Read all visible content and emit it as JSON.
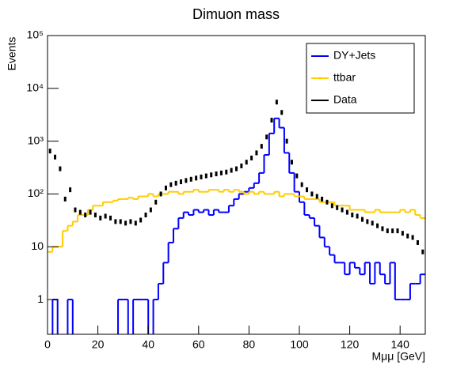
{
  "chart_data": {
    "type": "histogram",
    "title": "Dimuon mass",
    "x_label": "Mμμ [GeV]",
    "y_label": "Events",
    "log_y": true,
    "legend": "top right",
    "xlim": [
      0,
      150
    ],
    "xticks": [
      0,
      20,
      40,
      60,
      80,
      100,
      120,
      140
    ],
    "ylim": [
      0.22,
      100000
    ],
    "yticks": [
      1,
      10,
      {
        "value": 100,
        "label": "10²"
      },
      {
        "value": 1000,
        "label": "10³"
      },
      {
        "value": 10000,
        "label": "10⁴"
      },
      {
        "value": 100000,
        "label": "10⁵"
      }
    ],
    "bins": [
      0,
      2,
      4,
      6,
      8,
      10,
      12,
      14,
      16,
      18,
      20,
      22,
      24,
      26,
      28,
      30,
      32,
      34,
      36,
      38,
      40,
      42,
      44,
      46,
      48,
      50,
      52,
      54,
      56,
      58,
      60,
      62,
      64,
      66,
      68,
      70,
      72,
      74,
      76,
      78,
      80,
      82,
      84,
      86,
      88,
      90,
      92,
      94,
      96,
      98,
      100,
      102,
      104,
      106,
      108,
      110,
      112,
      114,
      116,
      118,
      120,
      122,
      124,
      126,
      128,
      130,
      132,
      134,
      136,
      138,
      140,
      142,
      144,
      146,
      148,
      150
    ],
    "series": [
      {
        "name": "DY+Jets",
        "color": "#0000ff",
        "style": "step",
        "values": [
          0,
          1,
          0,
          0,
          1,
          0,
          0,
          0,
          0,
          0,
          0,
          0,
          0,
          0,
          1,
          1,
          0,
          1,
          1,
          1,
          0,
          1,
          2,
          5,
          12,
          22,
          35,
          45,
          40,
          50,
          45,
          50,
          40,
          50,
          45,
          45,
          60,
          80,
          100,
          110,
          130,
          160,
          250,
          550,
          1400,
          2700,
          1800,
          600,
          250,
          110,
          70,
          40,
          35,
          25,
          15,
          10,
          7,
          5,
          5,
          3,
          5,
          4,
          3,
          5,
          2,
          5,
          3,
          2,
          5,
          1,
          1,
          1,
          2,
          2,
          3
        ]
      },
      {
        "name": "ttbar",
        "color": "#ffcc00",
        "style": "step",
        "values": [
          8,
          10,
          10,
          20,
          25,
          30,
          40,
          40,
          50,
          60,
          60,
          70,
          70,
          75,
          80,
          80,
          85,
          80,
          90,
          90,
          100,
          90,
          100,
          100,
          110,
          110,
          100,
          110,
          110,
          120,
          110,
          110,
          120,
          120,
          110,
          120,
          110,
          120,
          110,
          100,
          110,
          100,
          110,
          100,
          100,
          110,
          90,
          100,
          100,
          90,
          90,
          80,
          80,
          80,
          70,
          70,
          70,
          60,
          60,
          60,
          50,
          50,
          50,
          45,
          45,
          50,
          45,
          45,
          45,
          45,
          50,
          45,
          50,
          40,
          35
        ]
      },
      {
        "name": "Data",
        "color": "#000000",
        "style": "marker",
        "values": [
          650,
          500,
          300,
          80,
          120,
          50,
          45,
          40,
          45,
          40,
          35,
          38,
          35,
          30,
          30,
          28,
          30,
          28,
          32,
          40,
          50,
          70,
          100,
          130,
          150,
          160,
          170,
          180,
          190,
          200,
          210,
          220,
          230,
          240,
          250,
          260,
          280,
          300,
          340,
          400,
          480,
          600,
          800,
          1200,
          2500,
          5500,
          3500,
          1000,
          400,
          220,
          150,
          120,
          100,
          90,
          80,
          70,
          60,
          55,
          50,
          45,
          40,
          38,
          33,
          30,
          28,
          25,
          22,
          20,
          20,
          20,
          18,
          16,
          15,
          12,
          8
        ]
      }
    ]
  }
}
